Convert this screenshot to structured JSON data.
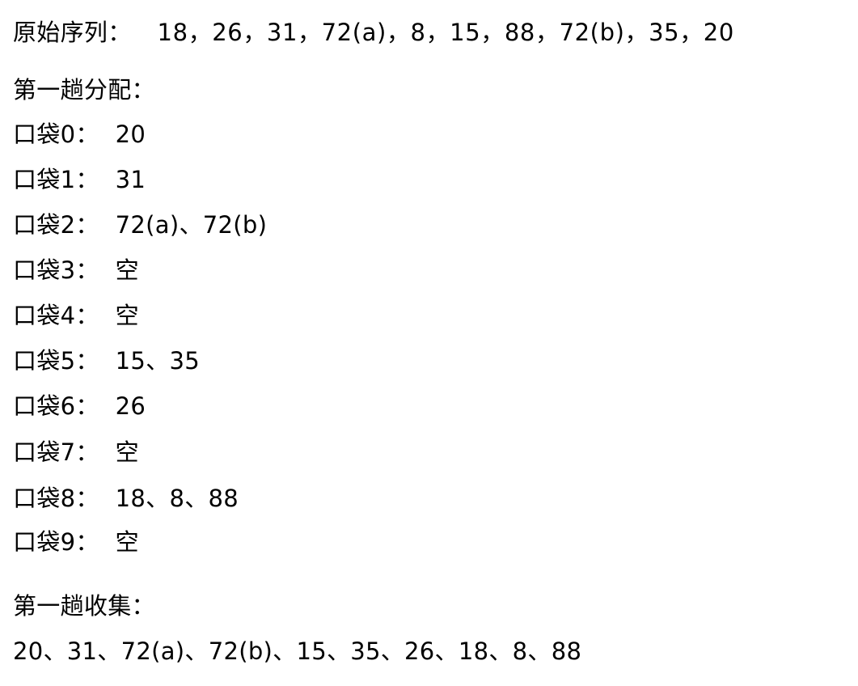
{
  "original_sequence": {
    "label": "原始序列：",
    "value": "18，26，31，72(a)，8，15，88，72(b)，35，20"
  },
  "first_pass_distribution": {
    "heading": "第一趟分配：",
    "pockets": [
      {
        "label": "口袋0：",
        "value": "20"
      },
      {
        "label": "口袋1：",
        "value": "31"
      },
      {
        "label": "口袋2：",
        "value": "72(a)、72(b)"
      },
      {
        "label": "口袋3：",
        "value": "空"
      },
      {
        "label": "口袋4：",
        "value": "空"
      },
      {
        "label": "口袋5：",
        "value": "15、35"
      },
      {
        "label": "口袋6：",
        "value": "26"
      },
      {
        "label": "口袋7：",
        "value": "空"
      },
      {
        "label": "口袋8：",
        "value": "18、8、88"
      },
      {
        "label": "口袋9：",
        "value": "空"
      }
    ]
  },
  "first_pass_collection": {
    "heading": "第一趟收集：",
    "value": "20、31、72(a)、72(b)、15、35、26、18、8、88"
  }
}
